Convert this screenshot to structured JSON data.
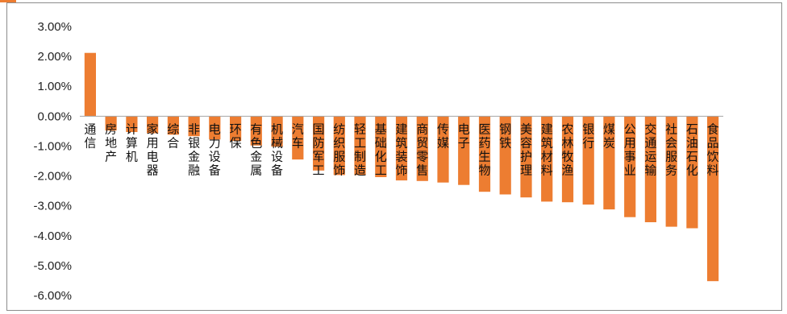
{
  "chart_data": {
    "type": "bar",
    "title": "",
    "xlabel": "",
    "ylabel": "",
    "ylim": [
      -6.0,
      3.0
    ],
    "yticks": [
      "3.00%",
      "2.00%",
      "1.00%",
      "0.00%",
      "-1.00%",
      "-2.00%",
      "-3.00%",
      "-4.00%",
      "-5.00%",
      "-6.00%"
    ],
    "grid": false,
    "legend": "none",
    "bar_color": "#ED7D31",
    "categories": [
      "通信",
      "房地产",
      "计算机",
      "家用电器",
      "综合",
      "非银金融",
      "电力设备",
      "环保",
      "有色金属",
      "机械设备",
      "汽车",
      "国防军工",
      "纺织服饰",
      "轻工制造",
      "基础化工",
      "建筑装饰",
      "商贸零售",
      "传媒",
      "电子",
      "医药生物",
      "钢铁",
      "美容护理",
      "建筑材料",
      "农林牧渔",
      "银行",
      "煤炭",
      "公用事业",
      "交通运输",
      "社会服务",
      "石油石化",
      "食品饮料"
    ],
    "values": [
      2.12,
      -0.48,
      -0.53,
      -0.57,
      -0.62,
      -0.67,
      -0.78,
      -0.83,
      -0.98,
      -1.02,
      -1.45,
      -1.82,
      -1.97,
      -1.97,
      -2.04,
      -2.15,
      -2.17,
      -2.22,
      -2.3,
      -2.53,
      -2.62,
      -2.72,
      -2.86,
      -2.88,
      -2.96,
      -3.12,
      -3.38,
      -3.55,
      -3.7,
      -3.75,
      -5.52
    ]
  }
}
